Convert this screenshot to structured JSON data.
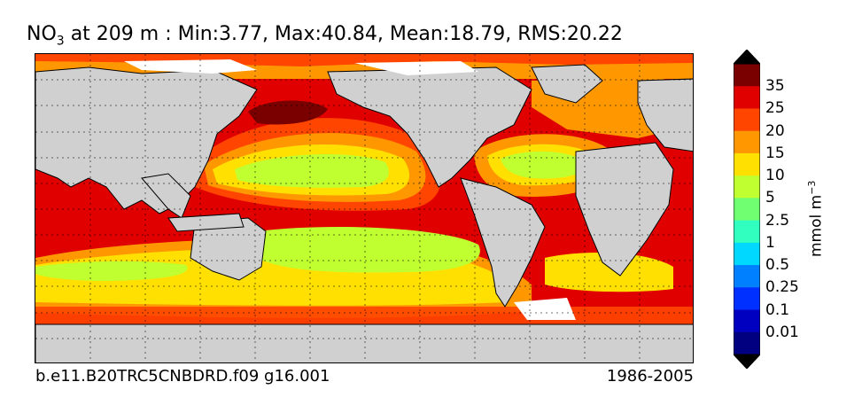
{
  "title": {
    "variable": "NO",
    "subscript": "3",
    "rest": " at 209 m : Min:3.77, Max:40.84, Mean:18.79, RMS:20.22"
  },
  "footer": {
    "case_name": "b.e11.B20TRC5CNBDRD.f09 g16.001",
    "years": "1986-2005"
  },
  "colorbar": {
    "units_base": "mmol m",
    "units_exponent": "−3",
    "extend": "both",
    "labels": [
      "35",
      "25",
      "20",
      "15",
      "10",
      "5",
      "2.5",
      "1",
      "0.5",
      "0.25",
      "0.1",
      "0.01"
    ],
    "colors_top_to_bottom": [
      "#7a0000",
      "#e00000",
      "#ff4500",
      "#ff9800",
      "#ffe000",
      "#c0ff30",
      "#70ff70",
      "#30ffc0",
      "#00d8ff",
      "#0080ff",
      "#0030ff",
      "#0000c0",
      "#000080"
    ],
    "over_color": "#000000",
    "under_color": "#000000"
  },
  "map": {
    "land_color": "#d0d0d0",
    "ice_color": "#ffffff",
    "grid": "dotted"
  }
}
